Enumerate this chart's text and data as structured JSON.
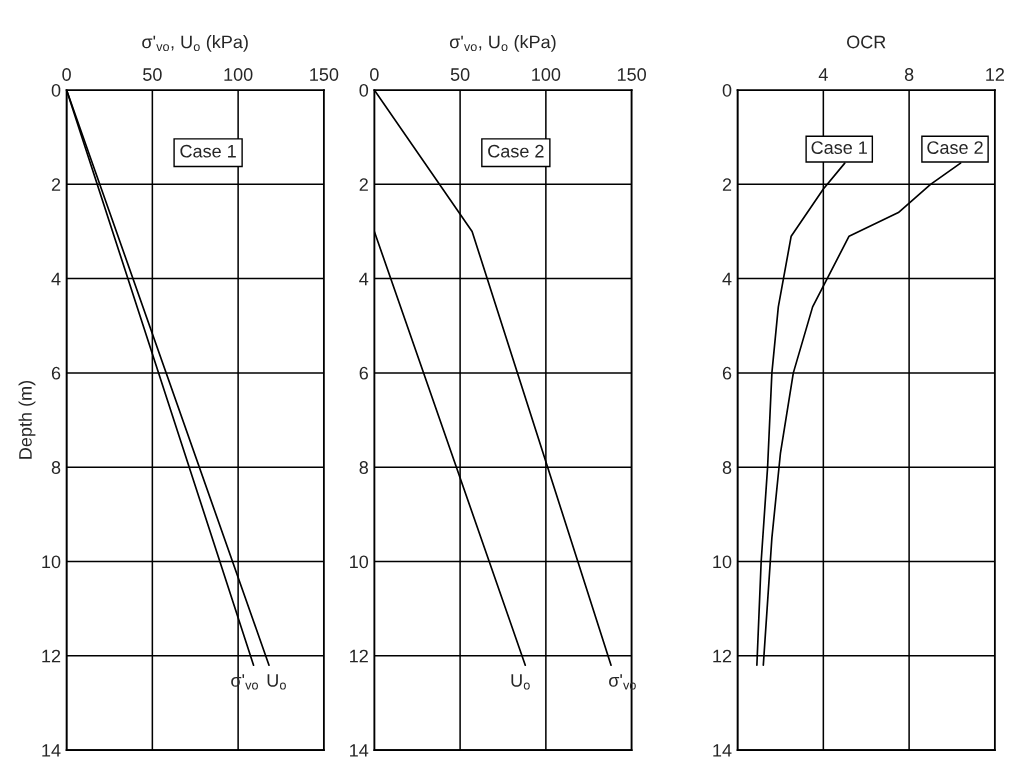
{
  "chart_data": [
    {
      "type": "line",
      "xlabel": "σ'$_{vo}$, U$_{o}$ (kPa)",
      "ylabel": "Depth (m)",
      "xlim": [
        0,
        150
      ],
      "xticks": [
        0,
        50,
        100,
        150
      ],
      "ylim": [
        14,
        0
      ],
      "yticks": [
        0,
        2,
        4,
        6,
        8,
        10,
        12,
        14
      ],
      "grid": true,
      "annotations": [
        "Case 1"
      ],
      "series": [
        {
          "name": "σ'$_{vo}$",
          "color": "#000000",
          "x": [
            0,
            109
          ],
          "values": [
            0,
            12.2
          ]
        },
        {
          "name": "U$_{o}$",
          "color": "#000000",
          "x": [
            0,
            118
          ],
          "values": [
            0,
            12.2
          ]
        }
      ]
    },
    {
      "type": "line",
      "xlabel": "σ'$_{vo}$, U$_{o}$ (kPa)",
      "xlim": [
        0,
        150
      ],
      "xticks": [
        0,
        50,
        100,
        150
      ],
      "ylim": [
        14,
        0
      ],
      "yticks": [
        0,
        2,
        4,
        6,
        8,
        10,
        12,
        14
      ],
      "grid": true,
      "annotations": [
        "Case 2"
      ],
      "series": [
        {
          "name": "U$_{o}$",
          "color": "#000000",
          "x": [
            0,
            88
          ],
          "values": [
            3,
            12.2
          ]
        },
        {
          "name": "σ'$_{vo}$",
          "color": "#000000",
          "x": [
            0,
            57,
            138
          ],
          "values": [
            0,
            3,
            12.2
          ]
        }
      ]
    },
    {
      "type": "line",
      "xlabel": "OCR",
      "xlim": [
        0,
        12
      ],
      "xticks": [
        {
          "value": 0,
          "label": null
        },
        4,
        8,
        12
      ],
      "ylim": [
        14,
        0
      ],
      "yticks": [
        0,
        2,
        4,
        6,
        8,
        10,
        12,
        14
      ],
      "grid": true,
      "series": [
        {
          "name": "Case 1",
          "color": "#000000",
          "x": [
            5.0,
            4.0,
            2.5,
            1.9,
            1.6,
            1.4,
            1.1,
            0.9
          ],
          "values": [
            1.55,
            2.1,
            3.1,
            4.6,
            6,
            8,
            10,
            12.2
          ]
        },
        {
          "name": "Case 2",
          "color": "#000000",
          "x": [
            10.4,
            9.0,
            7.5,
            5.2,
            3.5,
            2.6,
            2.0,
            1.6,
            1.2
          ],
          "values": [
            1.55,
            2.0,
            2.6,
            3.1,
            4.6,
            6,
            7.7,
            9.5,
            12.2
          ]
        }
      ]
    }
  ]
}
